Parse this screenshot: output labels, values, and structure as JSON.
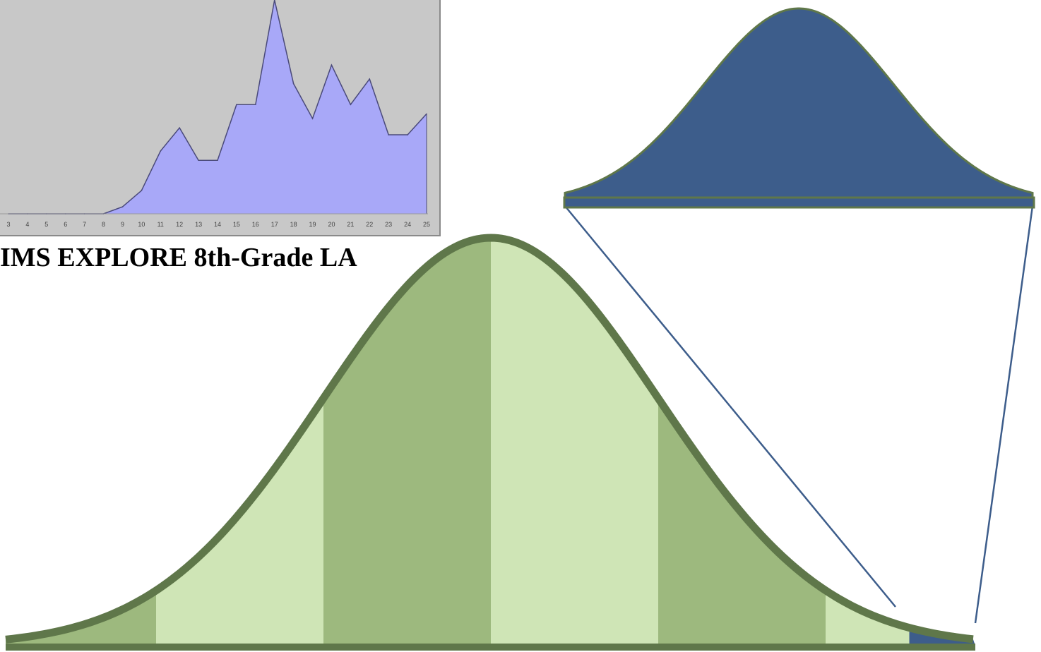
{
  "caption": "IMS EXPLORE 8th-Grade LA",
  "colors": {
    "chart_background": "#c8c8c8",
    "chart_border": "#8a8a8a",
    "area_fill": "#a8a8f8",
    "area_stroke": "#4a4a7a",
    "bell_light": "#cfe5b6",
    "bell_dark": "#9db97e",
    "bell_outline": "#5f774a",
    "bell_tail": "#3d5d8b",
    "zoom_fill": "#3d5d8b",
    "zoom_outline": "#5f774a",
    "connector": "#3d5d8b"
  },
  "chart_data": [
    {
      "type": "area",
      "x": [
        3,
        4,
        5,
        6,
        7,
        8,
        9,
        10,
        11,
        12,
        13,
        14,
        15,
        16,
        17,
        18,
        19,
        20,
        21,
        22,
        23,
        24,
        25
      ],
      "tick_labels": [
        "3",
        "4",
        "5",
        "6",
        "7",
        "8",
        "9",
        "10",
        "11",
        "12",
        "13",
        "14",
        "15",
        "16",
        "17",
        "18",
        "19",
        "20",
        "21",
        "22",
        "23",
        "24",
        "25"
      ],
      "values": [
        0,
        0,
        0,
        0,
        0,
        0,
        0.3,
        1,
        2.7,
        3.7,
        2.3,
        2.3,
        4.7,
        4.7,
        9.2,
        5.6,
        4.1,
        6.4,
        4.7,
        5.8,
        3.4,
        3.4,
        4.3
      ],
      "ylim": [
        0,
        9.2
      ],
      "grid": false
    },
    {
      "type": "area",
      "chart_kind": "normal distribution curve",
      "band_edges_sd": [
        -3,
        -2,
        -1,
        0,
        1,
        2,
        3
      ],
      "band_shades": [
        "dark",
        "light",
        "dark",
        "light",
        "dark",
        "light",
        "tail"
      ],
      "highlighted_tail": "above +2.5 sd",
      "zoomed_inset": "enlarged normal curve representing the highlighted upper tail"
    }
  ]
}
